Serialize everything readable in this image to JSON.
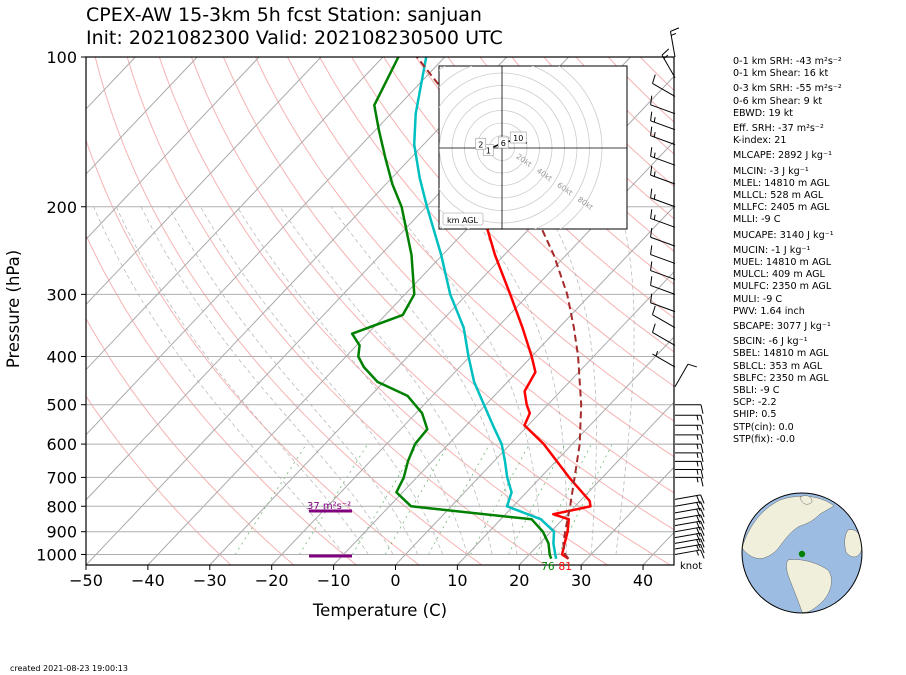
{
  "title": {
    "line1": "CPEX-AW 15-3km  5h fcst  Station: sanjuan",
    "line2": "Init: 2021082300  Valid: 202108230500 UTC"
  },
  "created": "created 2021-08-23 19:00:13",
  "indices": [
    "0-1 km SRH: -43 m²s⁻²",
    "0-1 km Shear: 16 kt",
    "0-3 km SRH: -55 m²s⁻²",
    "0-6 km Shear: 9 kt",
    "EBWD: 19 kt",
    "Eff. SRH: -37 m²s⁻²",
    "K-index: 21",
    "MLCAPE: 2892 J kg⁻¹",
    "MLCIN: -3 J kg⁻¹",
    "MLEL: 14810 m AGL",
    "MLLCL: 528 m AGL",
    "MLLFC: 2405 m AGL",
    "MLLI: -9 C",
    "MUCAPE: 3140 J kg⁻¹",
    "MUCIN: -1 J kg⁻¹",
    "MUEL: 14810 m AGL",
    "MULCL: 409 m AGL",
    "MULFC: 2350 m AGL",
    "MULI: -9 C",
    "PWV: 1.64 inch",
    "SBCAPE: 3077 J kg⁻¹",
    "SBCIN: -6 J kg⁻¹",
    "SBEL: 14810 m AGL",
    "SBLCL: 353 m AGL",
    "SBLFC: 2350 m AGL",
    "SBLI: -9 C",
    "SCP: -2.2",
    "SHIP: 0.5",
    "STP(cin): 0.0",
    "STP(fix): -0.0"
  ],
  "chart_data": {
    "type": "line",
    "xlabel": "Temperature (C)",
    "ylabel": "Pressure (hPa)",
    "xlim": [
      -50,
      45
    ],
    "ylim": [
      1050,
      100
    ],
    "y_scale": "log",
    "skew": "skew-T log-p",
    "xticks": [
      -50,
      -40,
      -30,
      -20,
      -10,
      0,
      10,
      20,
      30,
      40
    ],
    "yticks": [
      100,
      200,
      300,
      400,
      500,
      600,
      700,
      800,
      900,
      1000
    ],
    "surface_labels": {
      "dewpoint": "76",
      "temperature": "81"
    },
    "srh_annotation": "37 m²s⁻²",
    "wind_unit_label": "knot",
    "series": [
      {
        "name": "temperature",
        "color": "#ff0000",
        "points": [
          [
            1020,
            27.0
          ],
          [
            1000,
            25.3
          ],
          [
            950,
            24.0
          ],
          [
            900,
            22.7
          ],
          [
            850,
            21.0
          ],
          [
            830,
            17.7
          ],
          [
            810,
            21.0
          ],
          [
            800,
            22.5
          ],
          [
            780,
            21.5
          ],
          [
            700,
            14.6
          ],
          [
            600,
            5.4
          ],
          [
            550,
            -0.6
          ],
          [
            520,
            -1.6
          ],
          [
            500,
            -3.4
          ],
          [
            470,
            -5.8
          ],
          [
            430,
            -7.0
          ],
          [
            400,
            -10.0
          ],
          [
            350,
            -15.9
          ],
          [
            300,
            -23.0
          ],
          [
            250,
            -31.5
          ],
          [
            200,
            -41.2
          ],
          [
            170,
            -48.0
          ],
          [
            150,
            -53.5
          ],
          [
            130,
            -60.0
          ]
        ]
      },
      {
        "name": "dewpoint",
        "color": "#008000",
        "points": [
          [
            1020,
            24.2
          ],
          [
            1000,
            23.3
          ],
          [
            950,
            21.4
          ],
          [
            900,
            18.7
          ],
          [
            850,
            15.0
          ],
          [
            800,
            -6.5
          ],
          [
            750,
            -11.0
          ],
          [
            700,
            -12.1
          ],
          [
            650,
            -13.9
          ],
          [
            600,
            -15.4
          ],
          [
            560,
            -15.7
          ],
          [
            520,
            -19.0
          ],
          [
            480,
            -24.0
          ],
          [
            450,
            -31.0
          ],
          [
            420,
            -35.5
          ],
          [
            400,
            -38.0
          ],
          [
            380,
            -39.5
          ],
          [
            360,
            -42.5
          ],
          [
            330,
            -37.2
          ],
          [
            300,
            -38.5
          ],
          [
            250,
            -45.0
          ],
          [
            200,
            -54.0
          ],
          [
            180,
            -59.0
          ],
          [
            160,
            -64.0
          ],
          [
            140,
            -69.5
          ],
          [
            125,
            -74.0
          ],
          [
            100,
            -77.5
          ]
        ]
      },
      {
        "name": "wet-bulb",
        "color": "#00bfc0",
        "points": [
          [
            1020,
            25.0
          ],
          [
            1000,
            24.2
          ],
          [
            950,
            22.2
          ],
          [
            900,
            20.5
          ],
          [
            850,
            16.5
          ],
          [
            800,
            9.0
          ],
          [
            750,
            7.6
          ],
          [
            700,
            4.6
          ],
          [
            650,
            1.8
          ],
          [
            600,
            -1.4
          ],
          [
            550,
            -5.7
          ],
          [
            500,
            -10.3
          ],
          [
            450,
            -15.4
          ],
          [
            400,
            -20.2
          ],
          [
            350,
            -25.4
          ],
          [
            300,
            -32.7
          ],
          [
            250,
            -40.2
          ],
          [
            200,
            -49.9
          ],
          [
            175,
            -55.5
          ],
          [
            150,
            -61.5
          ],
          [
            130,
            -66.0
          ],
          [
            100,
            -73.0
          ]
        ]
      },
      {
        "name": "parcel",
        "color": "#a52a2a",
        "points": [
          [
            1020,
            27.0
          ],
          [
            1000,
            25.8
          ],
          [
            950,
            23.8
          ],
          [
            900,
            22.3
          ],
          [
            850,
            20.8
          ],
          [
            800,
            19.2
          ],
          [
            700,
            15.5
          ],
          [
            600,
            11.2
          ],
          [
            500,
            5.4
          ],
          [
            400,
            -2.5
          ],
          [
            350,
            -7.6
          ],
          [
            300,
            -13.8
          ],
          [
            250,
            -22.0
          ],
          [
            200,
            -33.0
          ],
          [
            170,
            -42.0
          ],
          [
            150,
            -50.0
          ],
          [
            125,
            -61.0
          ],
          [
            100,
            -74.5
          ]
        ]
      }
    ],
    "wind_barbs": [
      {
        "p": 1000,
        "dir": 80,
        "spd": 15
      },
      {
        "p": 975,
        "dir": 80,
        "spd": 15
      },
      {
        "p": 950,
        "dir": 80,
        "spd": 20
      },
      {
        "p": 925,
        "dir": 80,
        "spd": 20
      },
      {
        "p": 900,
        "dir": 80,
        "spd": 20
      },
      {
        "p": 875,
        "dir": 80,
        "spd": 20
      },
      {
        "p": 850,
        "dir": 80,
        "spd": 20
      },
      {
        "p": 825,
        "dir": 80,
        "spd": 20
      },
      {
        "p": 800,
        "dir": 80,
        "spd": 20
      },
      {
        "p": 775,
        "dir": 80,
        "spd": 20
      },
      {
        "p": 700,
        "dir": 90,
        "spd": 15
      },
      {
        "p": 675,
        "dir": 90,
        "spd": 15
      },
      {
        "p": 650,
        "dir": 90,
        "spd": 15
      },
      {
        "p": 625,
        "dir": 90,
        "spd": 15
      },
      {
        "p": 600,
        "dir": 90,
        "spd": 15
      },
      {
        "p": 575,
        "dir": 90,
        "spd": 15
      },
      {
        "p": 550,
        "dir": 90,
        "spd": 15
      },
      {
        "p": 525,
        "dir": 90,
        "spd": 15
      },
      {
        "p": 500,
        "dir": 90,
        "spd": 10
      },
      {
        "p": 460,
        "dir": 30,
        "spd": 10
      },
      {
        "p": 420,
        "dir": 300,
        "spd": 5
      },
      {
        "p": 380,
        "dir": 300,
        "spd": 10
      },
      {
        "p": 350,
        "dir": 300,
        "spd": 10
      },
      {
        "p": 325,
        "dir": 290,
        "spd": 10
      },
      {
        "p": 300,
        "dir": 290,
        "spd": 10
      },
      {
        "p": 280,
        "dir": 290,
        "spd": 10
      },
      {
        "p": 260,
        "dir": 290,
        "spd": 10
      },
      {
        "p": 240,
        "dir": 290,
        "spd": 10
      },
      {
        "p": 220,
        "dir": 290,
        "spd": 15
      },
      {
        "p": 200,
        "dir": 290,
        "spd": 15
      },
      {
        "p": 180,
        "dir": 290,
        "spd": 15
      },
      {
        "p": 165,
        "dir": 290,
        "spd": 15
      },
      {
        "p": 150,
        "dir": 290,
        "spd": 15
      },
      {
        "p": 140,
        "dir": 290,
        "spd": 15
      },
      {
        "p": 130,
        "dir": 290,
        "spd": 10
      },
      {
        "p": 120,
        "dir": 300,
        "spd": 10
      },
      {
        "p": 110,
        "dir": 330,
        "spd": 15
      },
      {
        "p": 100,
        "dir": 350,
        "spd": 15
      }
    ],
    "hodograph": {
      "height_label": "km AGL",
      "ring_labels": [
        "20kt",
        "40kt",
        "60kt",
        "80kt"
      ],
      "ring_speeds_kt": [
        20,
        40,
        60,
        80
      ],
      "trace_uv_kt": [
        [
          -10,
          -3
        ],
        [
          -14,
          -3
        ],
        [
          -11,
          -1
        ],
        [
          -2,
          3
        ],
        [
          4,
          5
        ],
        [
          12,
          7
        ],
        [
          17,
          5
        ],
        [
          20,
          4
        ]
      ],
      "point_labels": [
        {
          "text": "1",
          "u": -11,
          "v": -2
        },
        {
          "text": "2",
          "u": -17,
          "v": 3
        },
        {
          "text": "6",
          "u": 1,
          "v": 4
        },
        {
          "text": "10",
          "u": 13,
          "v": 8
        }
      ]
    },
    "globe": {
      "marker_lon": -66.1,
      "marker_lat": 18.4
    }
  }
}
